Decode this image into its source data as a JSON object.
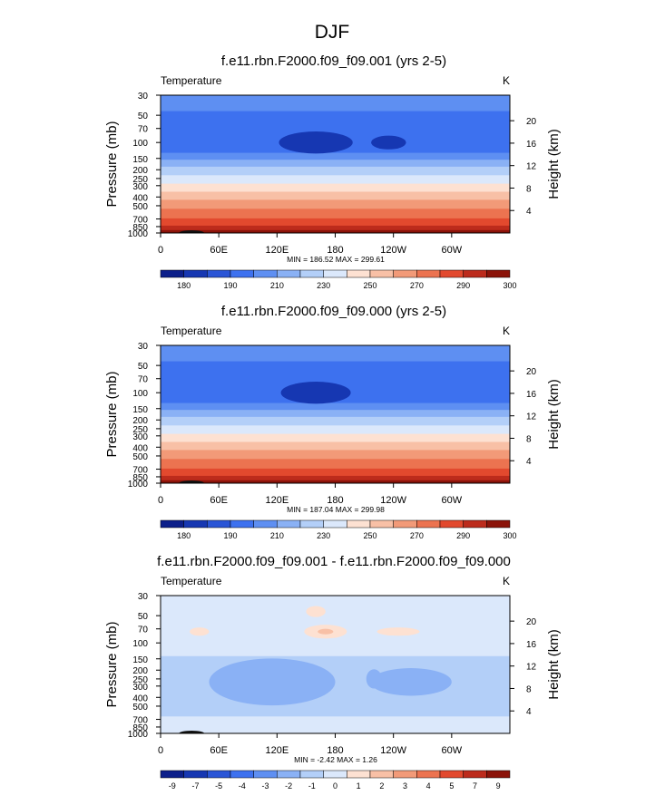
{
  "figure_title": "DJF",
  "chart_data": [
    {
      "type": "heatmap",
      "title": "f.e11.rbn.F2000.f09_f09.001 (yrs 2-5)",
      "variable": "Temperature",
      "units": "K",
      "xlabel": "",
      "ylabel": "Pressure (mb)",
      "y2label": "Height (km)",
      "stats": "MIN = 186.52  MAX = 299.61",
      "colorbar_labels": [
        "180",
        "190",
        "210",
        "230",
        "250",
        "270",
        "290",
        "300"
      ],
      "colors": [
        "#0c1f8a",
        "#1637b2",
        "#2a55d6",
        "#3d71ef",
        "#5e8ff2",
        "#8ab1f5",
        "#b3cff8",
        "#dbe8fb",
        "#fde1d2",
        "#f8c0a6",
        "#f29a78",
        "#ec7350",
        "#e2492e",
        "#bc2b1c",
        "#8b1309"
      ],
      "layers": [
        {
          "p_top": 30,
          "p_bot": 45,
          "level": 4
        },
        {
          "p_top": 45,
          "p_bot": 130,
          "level": 3
        },
        {
          "p_top": 130,
          "p_bot": 155,
          "level": 4
        },
        {
          "p_top": 155,
          "p_bot": 185,
          "level": 5
        },
        {
          "p_top": 185,
          "p_bot": 230,
          "level": 6
        },
        {
          "p_top": 230,
          "p_bot": 285,
          "level": 7
        },
        {
          "p_top": 285,
          "p_bot": 350,
          "level": 8
        },
        {
          "p_top": 350,
          "p_bot": 430,
          "level": 9
        },
        {
          "p_top": 430,
          "p_bot": 540,
          "level": 10
        },
        {
          "p_top": 540,
          "p_bot": 690,
          "level": 11
        },
        {
          "p_top": 690,
          "p_bot": 830,
          "level": 12
        },
        {
          "p_top": 830,
          "p_bot": 930,
          "level": 13
        },
        {
          "p_top": 930,
          "p_bot": 1000,
          "level": 14
        }
      ],
      "blobs": [
        {
          "lon": 160,
          "p": 100,
          "dlon": 38,
          "dp": 0.08,
          "level": 1
        },
        {
          "lon": 235,
          "p": 100,
          "dlon": 18,
          "dp": 0.05,
          "level": 1
        }
      ]
    },
    {
      "type": "heatmap",
      "title": "f.e11.rbn.F2000.f09_f09.000 (yrs 2-5)",
      "variable": "Temperature",
      "units": "K",
      "xlabel": "",
      "ylabel": "Pressure (mb)",
      "y2label": "Height (km)",
      "stats": "MIN = 187.04  MAX = 299.98",
      "colorbar_labels": [
        "180",
        "190",
        "210",
        "230",
        "250",
        "270",
        "290",
        "300"
      ],
      "colors": [
        "#0c1f8a",
        "#1637b2",
        "#2a55d6",
        "#3d71ef",
        "#5e8ff2",
        "#8ab1f5",
        "#b3cff8",
        "#dbe8fb",
        "#fde1d2",
        "#f8c0a6",
        "#f29a78",
        "#ec7350",
        "#e2492e",
        "#bc2b1c",
        "#8b1309"
      ],
      "layers": [
        {
          "p_top": 30,
          "p_bot": 45,
          "level": 4
        },
        {
          "p_top": 45,
          "p_bot": 130,
          "level": 3
        },
        {
          "p_top": 130,
          "p_bot": 155,
          "level": 4
        },
        {
          "p_top": 155,
          "p_bot": 185,
          "level": 5
        },
        {
          "p_top": 185,
          "p_bot": 230,
          "level": 6
        },
        {
          "p_top": 230,
          "p_bot": 285,
          "level": 7
        },
        {
          "p_top": 285,
          "p_bot": 350,
          "level": 8
        },
        {
          "p_top": 350,
          "p_bot": 430,
          "level": 9
        },
        {
          "p_top": 430,
          "p_bot": 540,
          "level": 10
        },
        {
          "p_top": 540,
          "p_bot": 690,
          "level": 11
        },
        {
          "p_top": 690,
          "p_bot": 830,
          "level": 12
        },
        {
          "p_top": 830,
          "p_bot": 930,
          "level": 13
        },
        {
          "p_top": 930,
          "p_bot": 1000,
          "level": 14
        }
      ],
      "blobs": [
        {
          "lon": 160,
          "p": 100,
          "dlon": 36,
          "dp": 0.08,
          "level": 1
        }
      ]
    },
    {
      "type": "heatmap",
      "title": "f.e11.rbn.F2000.f09_f09.001 - f.e11.rbn.F2000.f09_f09.000",
      "variable": "Temperature",
      "units": "K",
      "xlabel": "",
      "ylabel": "Pressure (mb)",
      "y2label": "Height (km)",
      "stats": "MIN = -2.42  MAX =  1.26",
      "colorbar_labels": [
        "-9",
        "-7",
        "-5",
        "-4",
        "-3",
        "-2",
        "-1",
        "0",
        "1",
        "2",
        "3",
        "4",
        "5",
        "7",
        "9"
      ],
      "colors": [
        "#0c1f8a",
        "#1637b2",
        "#2a55d6",
        "#3d71ef",
        "#5e8ff2",
        "#8ab1f5",
        "#b3cff8",
        "#dbe8fb",
        "#fde1d2",
        "#f8c0a6",
        "#f29a78",
        "#ec7350",
        "#e2492e",
        "#bc2b1c",
        "#8b1309"
      ],
      "layers": [
        {
          "p_top": 30,
          "p_bot": 140,
          "level": 7
        },
        {
          "p_top": 140,
          "p_bot": 650,
          "level": 6
        },
        {
          "p_top": 650,
          "p_bot": 1000,
          "level": 7
        }
      ],
      "blobs": [
        {
          "lon": 160,
          "p": 45,
          "dlon": 10,
          "dp": 0.04,
          "level": 8
        },
        {
          "lon": 40,
          "p": 75,
          "dlon": 10,
          "dp": 0.03,
          "level": 8
        },
        {
          "lon": 170,
          "p": 75,
          "dlon": 22,
          "dp": 0.05,
          "level": 8
        },
        {
          "lon": 170,
          "p": 75,
          "dlon": 8,
          "dp": 0.02,
          "level": 9
        },
        {
          "lon": 245,
          "p": 75,
          "dlon": 22,
          "dp": 0.03,
          "level": 8
        },
        {
          "lon": 115,
          "p": 270,
          "dlon": 65,
          "dp": 0.17,
          "level": 5
        },
        {
          "lon": 258,
          "p": 270,
          "dlon": 42,
          "dp": 0.1,
          "level": 5
        },
        {
          "lon": 220,
          "p": 250,
          "dlon": 8,
          "dp": 0.07,
          "level": 5
        }
      ]
    }
  ],
  "x_ticks": [
    {
      "lon": 0,
      "label": "0"
    },
    {
      "lon": 60,
      "label": "60E"
    },
    {
      "lon": 120,
      "label": "120E"
    },
    {
      "lon": 180,
      "label": "180"
    },
    {
      "lon": 240,
      "label": "120W"
    },
    {
      "lon": 300,
      "label": "60W"
    }
  ],
  "p_ticks": [
    30,
    50,
    70,
    100,
    150,
    200,
    250,
    300,
    400,
    500,
    700,
    850,
    1000
  ],
  "height_ticks": [
    4,
    8,
    12,
    16,
    20
  ]
}
